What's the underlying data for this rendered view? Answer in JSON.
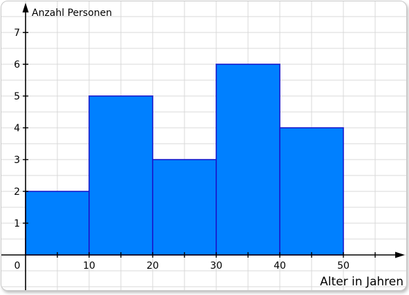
{
  "chart_data": {
    "type": "bar",
    "subtype": "histogram",
    "bins": [
      {
        "from": 0,
        "to": 10,
        "value": 2
      },
      {
        "from": 10,
        "to": 20,
        "value": 5
      },
      {
        "from": 20,
        "to": 30,
        "value": 3
      },
      {
        "from": 30,
        "to": 40,
        "value": 6
      },
      {
        "from": 40,
        "to": 50,
        "value": 4
      }
    ],
    "xlabel": "Alter in Jahren",
    "ylabel": "Anzahl Personen",
    "x_ticks": [
      "0",
      "10",
      "20",
      "30",
      "40",
      "50"
    ],
    "y_ticks": [
      "1",
      "2",
      "3",
      "4",
      "5",
      "6",
      "7"
    ],
    "xlim": [
      -3.5,
      60
    ],
    "ylim": [
      -1,
      7.9
    ],
    "grid": true,
    "colors": {
      "bar_fill": "#0080ff",
      "bar_stroke": "#1a1acc",
      "grid": "#d9d9d9",
      "axis": "#000000"
    }
  }
}
